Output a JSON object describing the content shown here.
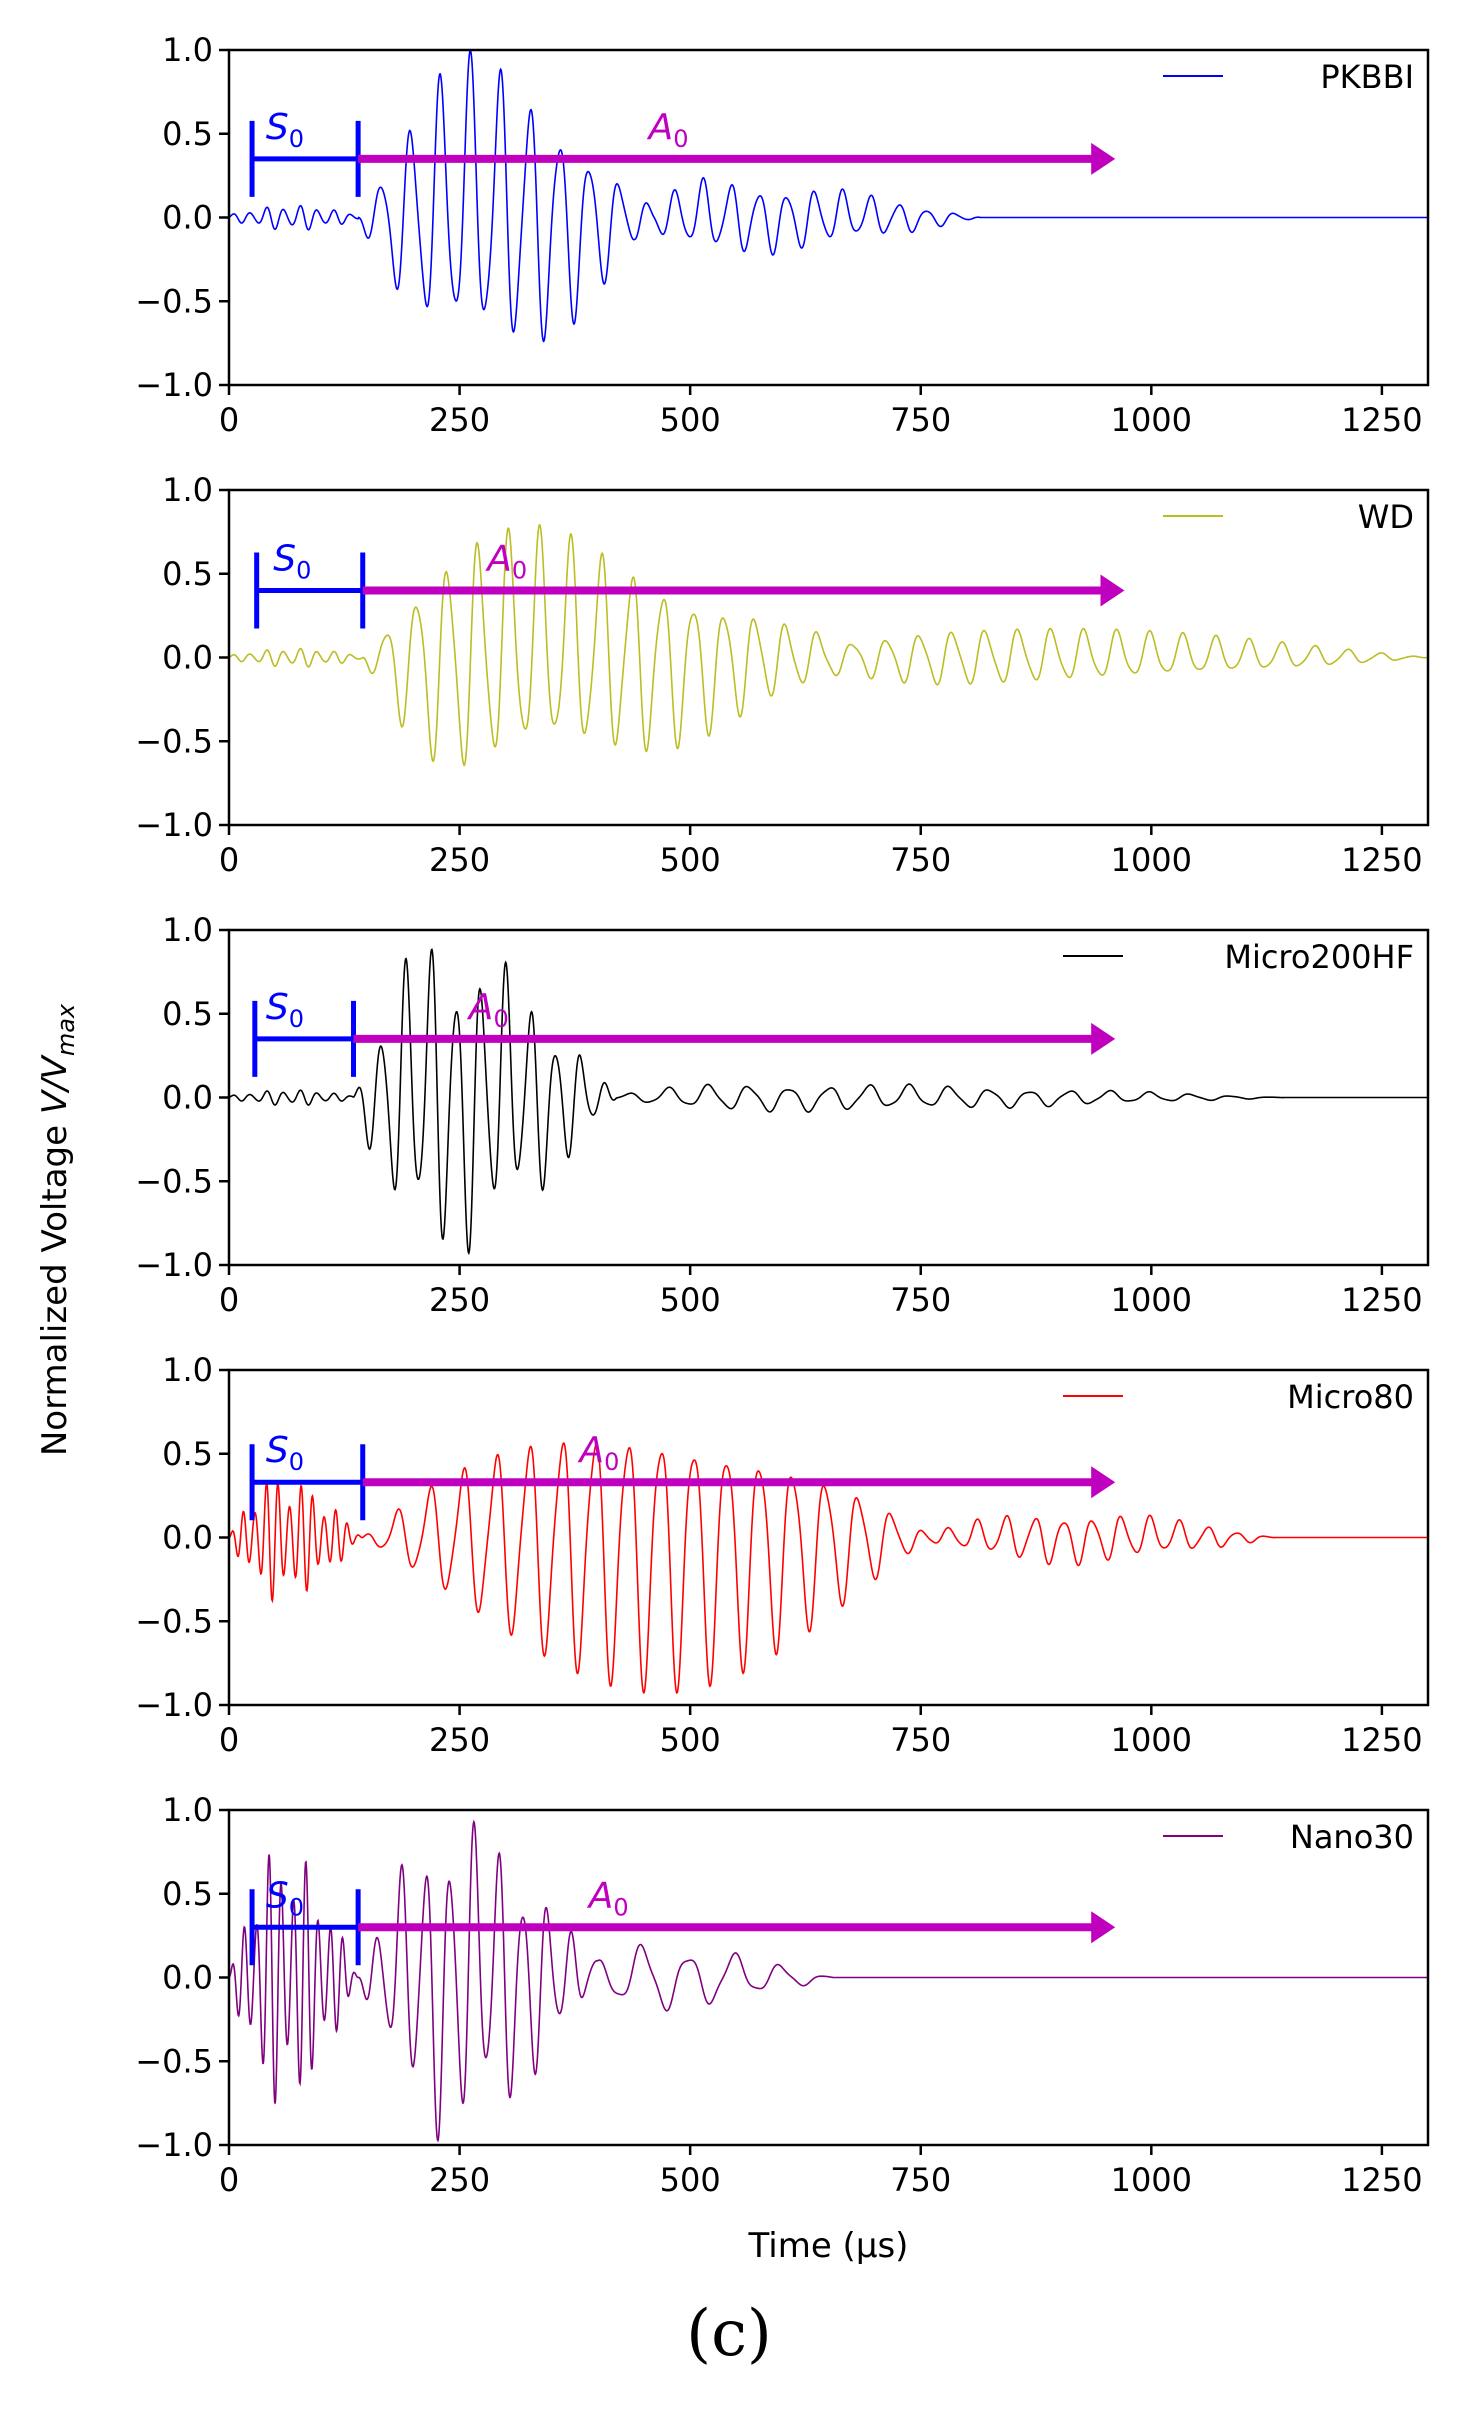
{
  "chart_data": {
    "type": "line",
    "figure_label": "(c)",
    "xlabel": "Time (μs)",
    "ylabel": "Normalized Voltage V/V_max",
    "xlim": [
      0,
      1300
    ],
    "ylim": [
      -1.0,
      1.0
    ],
    "xticks": [
      0,
      250,
      500,
      750,
      1000,
      1250
    ],
    "yticks": [
      1.0,
      0.5,
      0.0,
      -0.5,
      -1.0
    ],
    "ytick_labels": [
      "1.0",
      "0.5",
      "0.0",
      "−0.5",
      "−1.0"
    ],
    "mode_labels": {
      "s0": "S",
      "a0": "A",
      "subscript": "0"
    },
    "annotation_colors": {
      "s0": "#0000ff",
      "a0": "#bf00bf"
    },
    "panels": [
      {
        "sensor": "PKBBI",
        "color": "#0000ff",
        "signal_end_us": 815,
        "s0_window_us": [
          25,
          140
        ],
        "a0_window_us": [
          140,
          950
        ],
        "annotation_y": 0.35,
        "s0_label_x_us": 40,
        "a0_label_x_us": 455,
        "packets": [
          {
            "start": 0,
            "end": 140,
            "freq_khz": 55,
            "amp": 0.08
          },
          {
            "start": 140,
            "end": 460,
            "freq_khz": 31,
            "peak_us": 265,
            "amp": 1.0
          },
          {
            "start": 440,
            "end": 815,
            "freq_khz": 33,
            "peak_us": 520,
            "amp": 0.24
          }
        ]
      },
      {
        "sensor": "WD",
        "color": "#bcbd22",
        "signal_end_us": 1300,
        "s0_window_us": [
          30,
          145
        ],
        "a0_window_us": [
          145,
          960
        ],
        "annotation_y": 0.4,
        "s0_label_x_us": 48,
        "a0_label_x_us": 280,
        "packets": [
          {
            "start": 0,
            "end": 145,
            "freq_khz": 55,
            "amp": 0.06
          },
          {
            "start": 145,
            "end": 680,
            "freq_khz": 30,
            "peak_us": 270,
            "amp": 0.82
          },
          {
            "start": 600,
            "end": 1300,
            "freq_khz": 28,
            "peak_us": 800,
            "amp": 0.2
          }
        ]
      },
      {
        "sensor": "Micro200HF",
        "color": "#000000",
        "signal_end_us": 1145,
        "s0_window_us": [
          28,
          135
        ],
        "a0_window_us": [
          135,
          950
        ],
        "annotation_y": 0.35,
        "s0_label_x_us": 40,
        "a0_label_x_us": 260,
        "packets": [
          {
            "start": 0,
            "end": 135,
            "freq_khz": 55,
            "amp": 0.05
          },
          {
            "start": 135,
            "end": 420,
            "freq_khz": 37,
            "peak_us": 220,
            "amp": 1.0
          },
          {
            "start": 400,
            "end": 1145,
            "freq_khz": 23,
            "peak_us": 560,
            "amp": 0.09
          }
        ]
      },
      {
        "sensor": "Micro80",
        "color": "#ff0000",
        "signal_end_us": 1135,
        "s0_window_us": [
          25,
          145
        ],
        "a0_window_us": [
          145,
          950
        ],
        "annotation_y": 0.33,
        "s0_label_x_us": 40,
        "a0_label_x_us": 380,
        "packets": [
          {
            "start": 0,
            "end": 145,
            "freq_khz": 80,
            "peak_us": 50,
            "amp": 0.38
          },
          {
            "start": 145,
            "end": 760,
            "freq_khz": 28,
            "peak_us": 450,
            "amp": 0.95
          },
          {
            "start": 740,
            "end": 1135,
            "freq_khz": 32,
            "peak_us": 900,
            "amp": 0.17
          }
        ]
      },
      {
        "sensor": "Nano30",
        "color": "#800080",
        "signal_end_us": 655,
        "s0_window_us": [
          25,
          140
        ],
        "a0_window_us": [
          140,
          950
        ],
        "annotation_y": 0.3,
        "s0_label_x_us": 40,
        "a0_label_x_us": 390,
        "packets": [
          {
            "start": 0,
            "end": 140,
            "freq_khz": 75,
            "peak_us": 55,
            "amp": 0.8
          },
          {
            "start": 140,
            "end": 400,
            "freq_khz": 38,
            "peak_us": 240,
            "amp": 1.0
          },
          {
            "start": 380,
            "end": 655,
            "freq_khz": 20,
            "peak_us": 440,
            "amp": 0.22
          }
        ]
      }
    ]
  }
}
